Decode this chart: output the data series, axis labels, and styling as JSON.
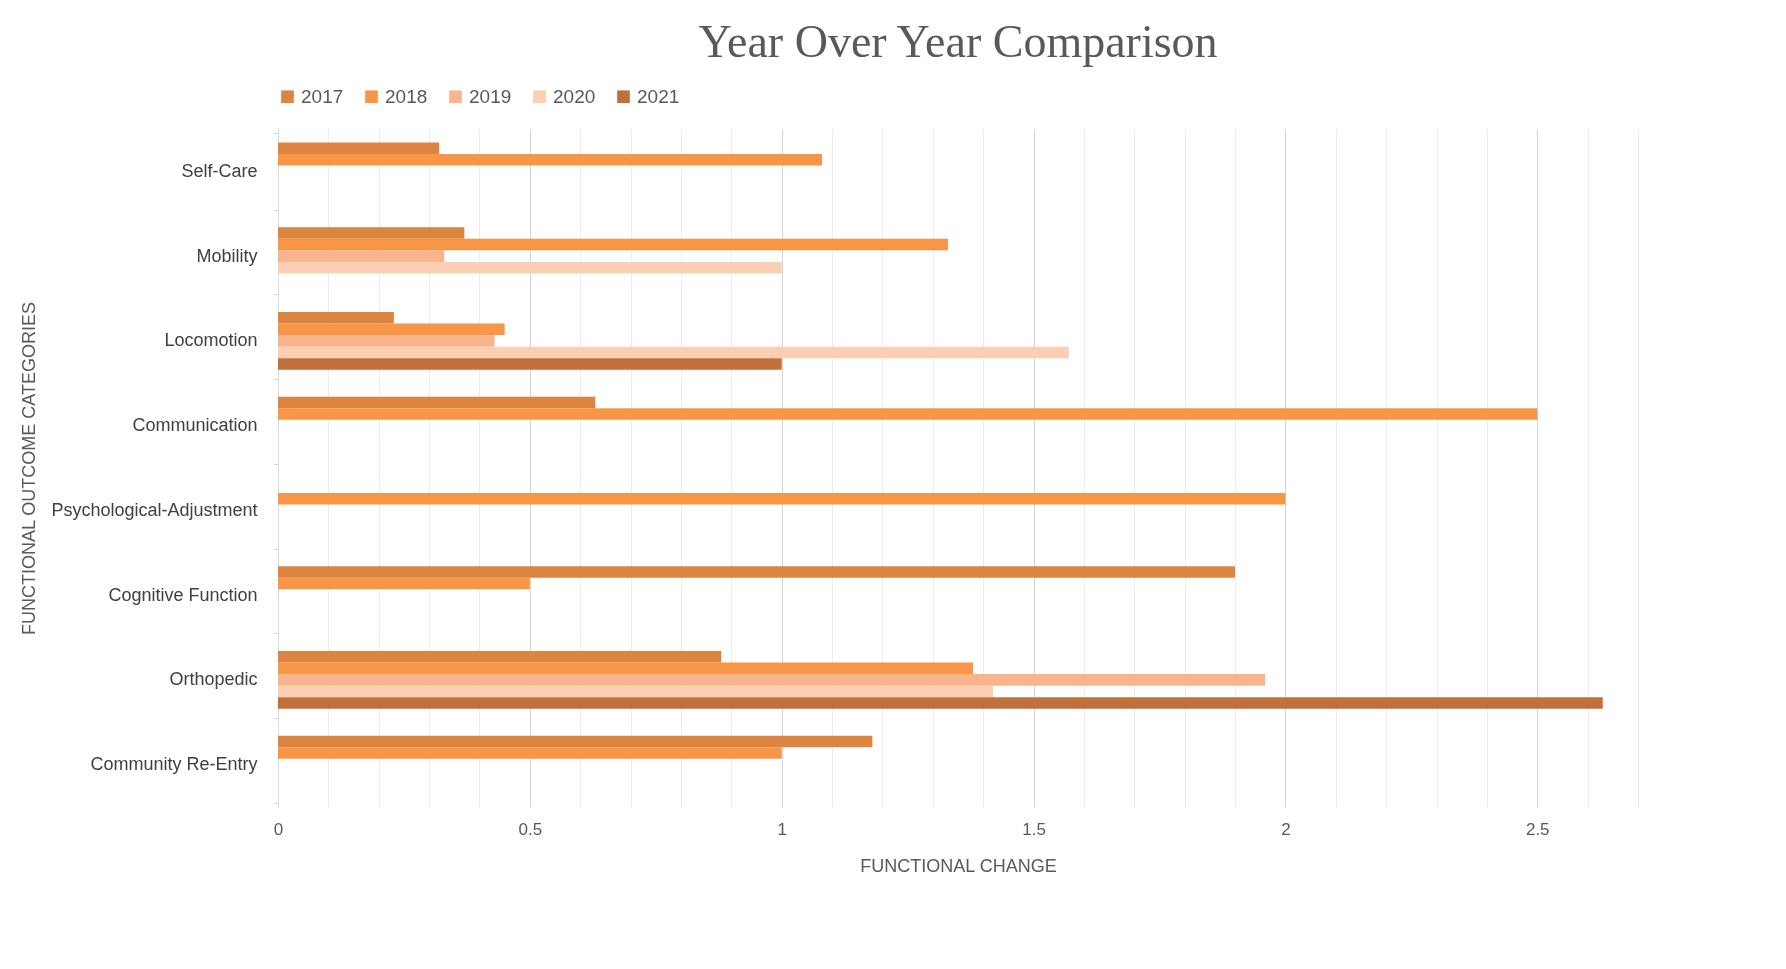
{
  "chart_data": {
    "type": "bar",
    "orientation": "horizontal",
    "title": "Year Over Year Comparison",
    "xlabel": "FUNCTIONAL CHANGE",
    "ylabel": "FUNCTIONAL OUTCOME CATEGORIES",
    "categories": [
      "Self-Care",
      "Mobility",
      "Locomotion",
      "Communication",
      "Psychological-Adjustment",
      "Cognitive Function",
      "Orthopedic",
      "Community Re-Entry"
    ],
    "series": [
      {
        "name": "2017",
        "color": "#dc8440",
        "values": [
          0.32,
          0.37,
          0.23,
          0.63,
          null,
          1.9,
          0.88,
          1.18
        ]
      },
      {
        "name": "2018",
        "color": "#f79646",
        "values": [
          1.08,
          1.33,
          0.45,
          2.5,
          2.0,
          0.5,
          1.38,
          1.0
        ]
      },
      {
        "name": "2019",
        "color": "#f8b48c",
        "values": [
          null,
          0.33,
          0.43,
          null,
          null,
          null,
          1.96,
          null
        ]
      },
      {
        "name": "2020",
        "color": "#fbcfb4",
        "values": [
          null,
          1.0,
          1.57,
          null,
          null,
          null,
          1.42,
          null
        ]
      },
      {
        "name": "2021",
        "color": "#c0703a",
        "values": [
          null,
          null,
          1.0,
          null,
          null,
          null,
          2.63,
          null
        ]
      }
    ],
    "xlim": [
      0,
      2.7
    ],
    "xticks": [
      0,
      {
        "value": 0.1,
        "label": null
      },
      {
        "value": 0.2,
        "label": null
      },
      {
        "value": 0.3,
        "label": null
      },
      {
        "value": 0.4,
        "label": null
      },
      0.5,
      {
        "value": 0.6,
        "label": null
      },
      {
        "value": 0.7,
        "label": null
      },
      {
        "value": 0.8,
        "label": null
      },
      {
        "value": 0.9,
        "label": null
      },
      1,
      {
        "value": 1.1,
        "label": null
      },
      {
        "value": 1.2,
        "label": null
      },
      {
        "value": 1.3,
        "label": null
      },
      {
        "value": 1.4,
        "label": null
      },
      1.5,
      {
        "value": 1.6,
        "label": null
      },
      {
        "value": 1.7,
        "label": null
      },
      {
        "value": 1.8,
        "label": null
      },
      {
        "value": 1.9,
        "label": null
      },
      2,
      {
        "value": 2.1,
        "label": null
      },
      {
        "value": 2.2,
        "label": null
      },
      {
        "value": 2.3,
        "label": null
      },
      {
        "value": 2.4,
        "label": null
      },
      2.5,
      {
        "value": 2.6,
        "label": null
      },
      {
        "value": 2.7,
        "label": null
      }
    ],
    "grid": "x",
    "legend": "top"
  }
}
